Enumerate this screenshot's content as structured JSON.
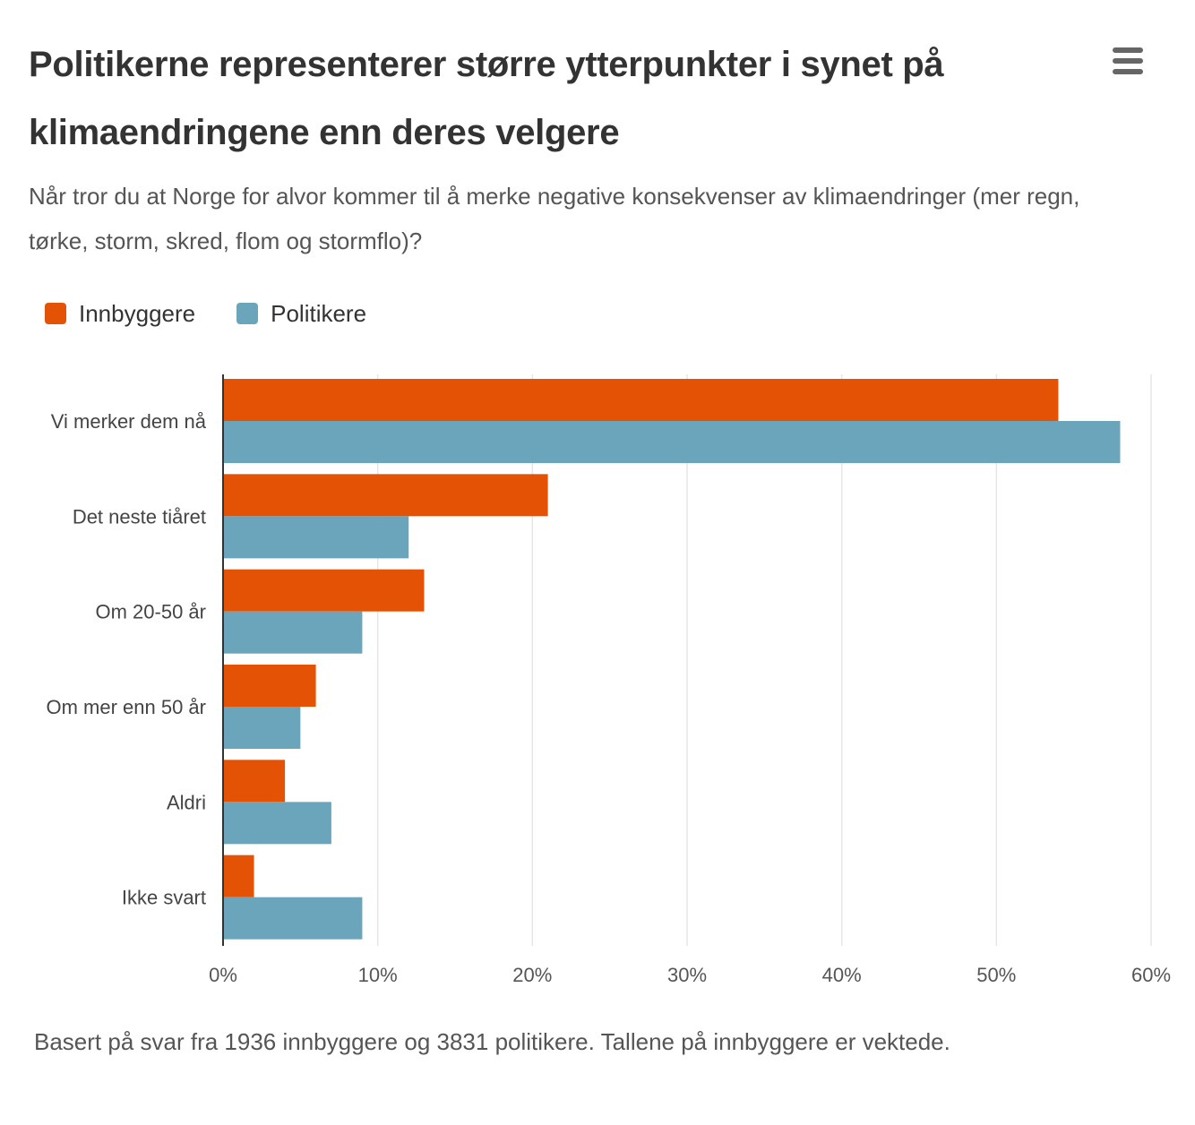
{
  "chart_data": {
    "type": "bar",
    "orientation": "horizontal",
    "title": "Politikerne representerer større ytterpunkter i synet på klimaendringene enn deres velgere",
    "subtitle": "Når tror du at Norge for alvor kommer til å merke negative konsekvenser av klimaendringer (mer regn, tørke, storm, skred, flom og stormflo)?",
    "categories": [
      "Vi merker dem nå",
      "Det neste tiåret",
      "Om 20-50 år",
      "Om mer enn 50 år",
      "Aldri",
      "Ikke svart"
    ],
    "series": [
      {
        "name": "Innbyggere",
        "color": "#e35205",
        "values": [
          54,
          21,
          13,
          6,
          4,
          2
        ]
      },
      {
        "name": "Politikere",
        "color": "#6aa5bb",
        "values": [
          58,
          12,
          9,
          5,
          7,
          9
        ]
      }
    ],
    "xlim": [
      0,
      60
    ],
    "ticks": [
      0,
      10,
      20,
      30,
      40,
      50,
      60
    ],
    "tick_labels": [
      "0%",
      "10%",
      "20%",
      "30%",
      "40%",
      "50%",
      "60%"
    ],
    "grid": true,
    "legend_position": "top-left",
    "footnote": "Basert på svar fra 1936 innbyggere og 3831 politikere. Tallene på innbyggere er vektede."
  },
  "menu_icon": "hamburger-menu-icon"
}
